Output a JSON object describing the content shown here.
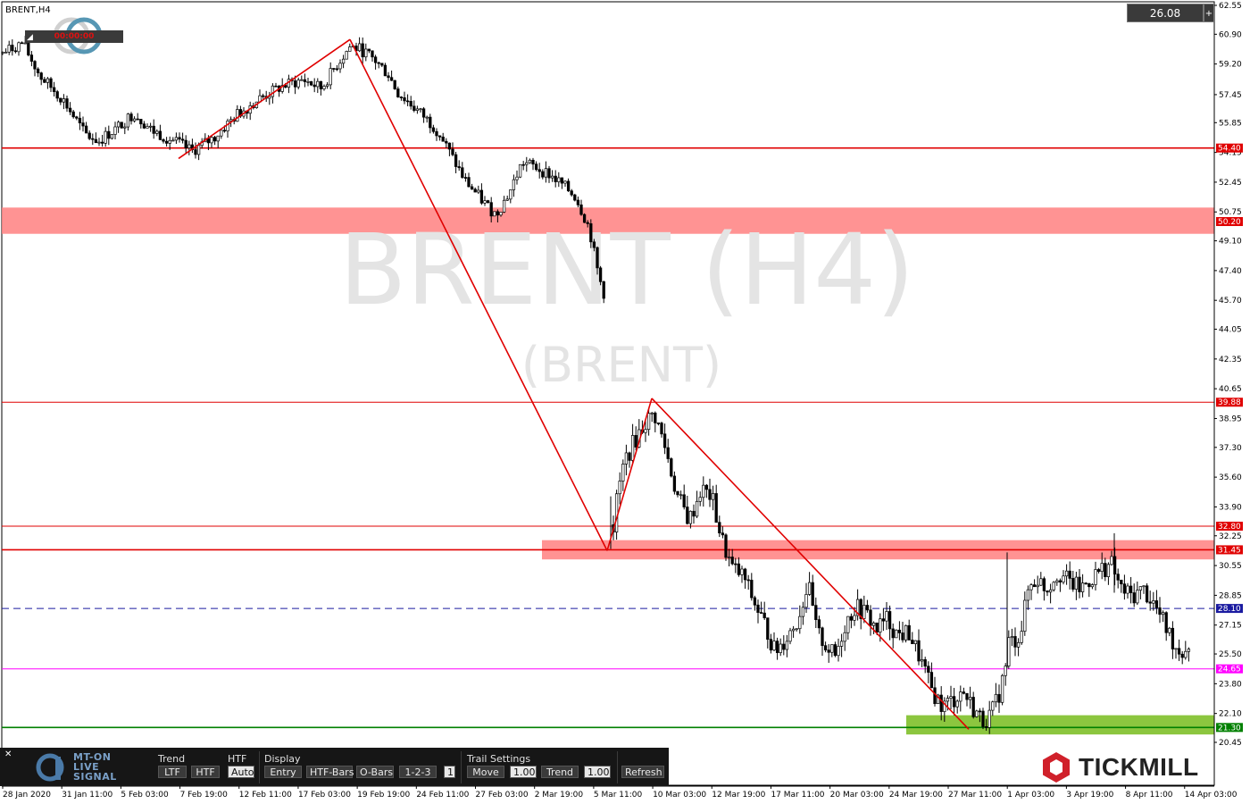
{
  "window": {
    "symbol_label": "BRENT,H4"
  },
  "watermark": {
    "title": "BRENT (H4)",
    "subtitle": "(BRENT)"
  },
  "price_box": {
    "value": "26.08",
    "button_glyph": "+"
  },
  "timer": {
    "value": "00:00:00"
  },
  "colors": {
    "candle": "#000000",
    "trend_line": "#e00000",
    "resistance": "#e00000",
    "zone_red": "#ff8080",
    "zone_green": "#8cc63f",
    "support_green": "#008000",
    "magenta": "#ff00ff",
    "dashed": "#1a1aa0"
  },
  "chart_data": {
    "type": "candlestick",
    "symbol": "BRENT",
    "timeframe": "H4",
    "ylim": [
      20.45,
      62.55
    ],
    "y_ticks": [
      "62.55",
      "60.90",
      "59.20",
      "57.45",
      "55.85",
      "54.15",
      "52.45",
      "50.75",
      "49.10",
      "47.40",
      "45.70",
      "44.05",
      "42.35",
      "40.65",
      "38.95",
      "37.30",
      "35.60",
      "33.90",
      "32.25",
      "30.55",
      "28.85",
      "27.15",
      "25.50",
      "23.80",
      "22.10",
      "20.45"
    ],
    "x_ticks": [
      "28 Jan 2020",
      "31 Jan 11:00",
      "5 Feb 03:00",
      "7 Feb 19:00",
      "12 Feb 11:00",
      "17 Feb 03:00",
      "19 Feb 19:00",
      "24 Feb 11:00",
      "27 Feb 03:00",
      "2 Mar 19:00",
      "5 Mar 11:00",
      "10 Mar 03:00",
      "12 Mar 19:00",
      "17 Mar 11:00",
      "20 Mar 03:00",
      "24 Mar 19:00",
      "27 Mar 11:00",
      "1 Apr 03:00",
      "3 Apr 19:00",
      "8 Apr 11:00",
      "14 Apr 03:00"
    ],
    "x_range": [
      0,
      1360
    ],
    "price_path": [
      [
        2,
        59.8
      ],
      [
        25,
        60.4
      ],
      [
        45,
        58.5
      ],
      [
        70,
        57.2
      ],
      [
        95,
        55.2
      ],
      [
        110,
        54.8
      ],
      [
        130,
        55.5
      ],
      [
        150,
        56.4
      ],
      [
        170,
        55.4
      ],
      [
        195,
        54.8
      ],
      [
        215,
        54.2
      ],
      [
        240,
        55.0
      ],
      [
        265,
        56.3
      ],
      [
        290,
        57.2
      ],
      [
        315,
        57.9
      ],
      [
        340,
        58.3
      ],
      [
        360,
        57.8
      ],
      [
        375,
        59.0
      ],
      [
        392,
        60.2
      ],
      [
        405,
        60.0
      ],
      [
        420,
        59.4
      ],
      [
        435,
        58.6
      ],
      [
        445,
        57.6
      ],
      [
        460,
        56.9
      ],
      [
        475,
        56.2
      ],
      [
        490,
        55.4
      ],
      [
        505,
        54.0
      ],
      [
        520,
        52.6
      ],
      [
        540,
        51.4
      ],
      [
        555,
        50.6
      ],
      [
        570,
        51.8
      ],
      [
        585,
        53.6
      ],
      [
        600,
        53.3
      ],
      [
        615,
        52.9
      ],
      [
        630,
        52.3
      ],
      [
        645,
        51.6
      ],
      [
        660,
        49.8
      ],
      [
        670,
        47.2
      ],
      [
        678,
        45.8
      ],
      [
        684,
        31.6
      ],
      [
        692,
        34.8
      ],
      [
        700,
        36.6
      ],
      [
        710,
        37.6
      ],
      [
        722,
        38.7
      ],
      [
        733,
        39.2
      ],
      [
        745,
        37.3
      ],
      [
        758,
        34.6
      ],
      [
        772,
        33.1
      ],
      [
        785,
        34.9
      ],
      [
        797,
        34.5
      ],
      [
        808,
        32.1
      ],
      [
        820,
        30.4
      ],
      [
        833,
        29.9
      ],
      [
        845,
        28.4
      ],
      [
        858,
        27.0
      ],
      [
        868,
        25.6
      ],
      [
        880,
        26.4
      ],
      [
        893,
        27.4
      ],
      [
        905,
        29.5
      ],
      [
        915,
        26.7
      ],
      [
        925,
        26.0
      ],
      [
        935,
        25.3
      ],
      [
        947,
        27.3
      ],
      [
        958,
        28.2
      ],
      [
        970,
        27.8
      ],
      [
        982,
        26.9
      ],
      [
        993,
        27.5
      ],
      [
        1005,
        26.6
      ],
      [
        1018,
        26.7
      ],
      [
        1030,
        25.3
      ],
      [
        1042,
        23.6
      ],
      [
        1055,
        22.5
      ],
      [
        1068,
        22.9
      ],
      [
        1078,
        23.4
      ],
      [
        1090,
        22.4
      ],
      [
        1100,
        21.7
      ],
      [
        1110,
        22.0
      ],
      [
        1120,
        23.4
      ],
      [
        1128,
        25.2
      ],
      [
        1135,
        26.2
      ],
      [
        1143,
        26.7
      ],
      [
        1152,
        29.3
      ],
      [
        1162,
        29.8
      ],
      [
        1172,
        29.2
      ],
      [
        1185,
        30.2
      ],
      [
        1198,
        29.6
      ],
      [
        1210,
        29.2
      ],
      [
        1222,
        29.8
      ],
      [
        1235,
        30.4
      ],
      [
        1245,
        30.6
      ],
      [
        1255,
        29.2
      ],
      [
        1268,
        28.8
      ],
      [
        1280,
        29.2
      ],
      [
        1292,
        28.4
      ],
      [
        1305,
        27.1
      ],
      [
        1318,
        25.8
      ],
      [
        1325,
        25.7
      ],
      [
        1333,
        26.1
      ]
    ],
    "wicks": [
      {
        "x": 1128,
        "high": 31.3,
        "low": 24.7
      },
      {
        "x": 1248,
        "high": 32.4,
        "low": 29.0
      },
      {
        "x": 684,
        "high": 34.5,
        "low": 31.5
      }
    ],
    "horizontal_lines": [
      {
        "price": 54.4,
        "label": "54.40",
        "kind": "resistance"
      },
      {
        "price": 39.88,
        "label": "39.88",
        "kind": "resistance"
      },
      {
        "price": 32.8,
        "label": "32.80",
        "kind": "resistance"
      },
      {
        "price": 31.45,
        "label": "31.45",
        "kind": "resistance"
      },
      {
        "price": 28.1,
        "label": "28.10",
        "kind": "dashed"
      },
      {
        "price": 24.65,
        "label": "24.65",
        "kind": "magenta"
      },
      {
        "price": 21.3,
        "label": "21.30",
        "kind": "support"
      }
    ],
    "extra_labels": [
      {
        "price": 50.2,
        "label": "50.20",
        "kind": "zone"
      }
    ],
    "zones": [
      {
        "from_x": 2,
        "to_x": 1360,
        "top": 51.0,
        "bottom": 49.5,
        "kind": "red"
      },
      {
        "from_x": 607,
        "to_x": 1360,
        "top": 32.0,
        "bottom": 30.9,
        "kind": "red"
      },
      {
        "from_x": 1015,
        "to_x": 1360,
        "top": 22.0,
        "bottom": 20.9,
        "kind": "green"
      }
    ],
    "trend_lines": [
      {
        "x1": 200,
        "y1": 53.8,
        "x2": 392,
        "y2": 60.6
      },
      {
        "x1": 392,
        "y1": 60.6,
        "x2": 680,
        "y2": 31.4
      },
      {
        "x1": 680,
        "y1": 31.4,
        "x2": 730,
        "y2": 40.1
      },
      {
        "x1": 730,
        "y1": 40.1,
        "x2": 1085,
        "y2": 21.2
      }
    ]
  },
  "toolbar": {
    "trend": {
      "title": "Trend",
      "ltf": "LTF",
      "htf": "HTF"
    },
    "htf": {
      "title": "HTF",
      "auto": "Auto"
    },
    "display": {
      "title": "Display",
      "entry": "Entry",
      "htf_bars": "HTF-Bars",
      "o_bars": "O-Bars",
      "pattern": "1-2-3",
      "count": "1"
    },
    "trail": {
      "title": "Trail Settings",
      "move": "Move",
      "move_value": "1.00",
      "trend": "Trend",
      "trend_value": "1.00"
    },
    "refresh": "Refresh",
    "logo_line1": "MT-ON",
    "logo_line2": "LIVE",
    "logo_line3": "SIGNAL"
  },
  "brand": {
    "name": "TICKMILL"
  }
}
